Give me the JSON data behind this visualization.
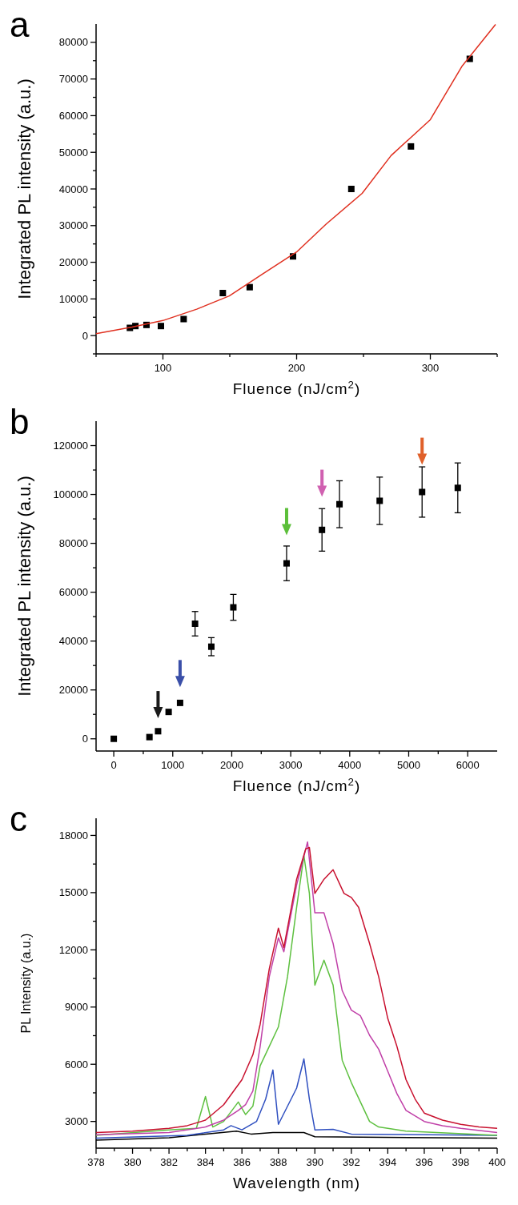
{
  "chart_data": [
    {
      "type": "scatter",
      "title": "a",
      "xlabel": "Fluence (nJ/cm$^{2}$)",
      "ylabel": "Integrated PL intensity (a.u.)",
      "xlim": [
        50,
        350
      ],
      "ylim": [
        -5000,
        85000
      ],
      "xticks": [
        {
          "value": 50,
          "label": null
        },
        100,
        {
          "value": 150,
          "label": null
        },
        200,
        {
          "value": 250,
          "label": null
        },
        300,
        {
          "value": 350,
          "label": null
        }
      ],
      "yticks": [
        {
          "value": -5000,
          "label": null
        },
        0,
        {
          "value": 5000,
          "label": null
        },
        10000,
        {
          "value": 15000,
          "label": null
        },
        20000,
        {
          "value": 25000,
          "label": null
        },
        30000,
        {
          "value": 35000,
          "label": null
        },
        40000,
        {
          "value": 45000,
          "label": null
        },
        50000,
        {
          "value": 55000,
          "label": null
        },
        60000,
        {
          "value": 65000,
          "label": null
        },
        70000,
        {
          "value": 75000,
          "label": null
        },
        80000
      ],
      "series": [
        {
          "type": "scatter",
          "marker": "square",
          "color": "#000000",
          "x": [
            75.3,
            79.4,
            87.7,
            98.5,
            115.5,
            144.8,
            164.9,
            197.3,
            240.9,
            285.5,
            329.5
          ],
          "values": [
            2100,
            2600,
            2900,
            2600,
            4500,
            11600,
            13200,
            21600,
            40000,
            51600,
            75500
          ]
        },
        {
          "type": "line",
          "marker": "none",
          "color": "#e03020",
          "x": [
            50,
            76.9,
            100,
            125.3,
            149.6,
            173.7,
            200,
            222,
            249,
            270.6,
            300,
            323.9,
            348.8
          ],
          "values": [
            500,
            2300,
            4100,
            7200,
            10800,
            16600,
            22800,
            30400,
            38800,
            49100,
            58900,
            73600,
            84900
          ]
        }
      ]
    },
    {
      "type": "scatter",
      "title": "b",
      "xlabel": "Fluence (nJ/cm$^{2}$)",
      "ylabel": "Integrated PL intensity (a.u.)",
      "xlim": [
        -300,
        6500
      ],
      "ylim": [
        -5000,
        130000
      ],
      "xticks": [
        0,
        {
          "value": 500,
          "label": null
        },
        1000,
        {
          "value": 1500,
          "label": null
        },
        2000,
        {
          "value": 2500,
          "label": null
        },
        3000,
        {
          "value": 3500,
          "label": null
        },
        4000,
        {
          "value": 4500,
          "label": null
        },
        5000,
        {
          "value": 5500,
          "label": null
        },
        6000
      ],
      "yticks": [
        0,
        {
          "value": 10000,
          "label": null
        },
        20000,
        {
          "value": 30000,
          "label": null
        },
        40000,
        {
          "value": 50000,
          "label": null
        },
        60000,
        {
          "value": 70000,
          "label": null
        },
        80000,
        {
          "value": 90000,
          "label": null
        },
        100000,
        {
          "value": 110000,
          "label": null
        },
        120000
      ],
      "series": [
        {
          "type": "scatter",
          "marker": "square",
          "color": "#000000",
          "x": [
            0,
            605,
            751,
            930,
            1124,
            1378,
            1654,
            2027,
            2930,
            3530,
            3827,
            4508,
            5227,
            5832
          ],
          "values": [
            0,
            700,
            3100,
            11000,
            14700,
            47100,
            37700,
            53800,
            71800,
            85500,
            96000,
            97400,
            101000,
            102700
          ],
          "errors": [
            null,
            null,
            null,
            null,
            null,
            5000,
            3700,
            5300,
            7100,
            8700,
            9600,
            9700,
            10300,
            10200
          ]
        },
        {
          "type": "scatter",
          "marker": "triangle",
          "colors": [
            "#1a1a1a",
            "#3a4fa8",
            "#5cbf3a",
            "#d060b0",
            "#e0602a"
          ],
          "x": [
            751,
            1124,
            2930,
            3530,
            5227
          ],
          "values": [
            10700,
            23400,
            85600,
            101300,
            114400
          ]
        }
      ]
    },
    {
      "type": "line",
      "title": "c",
      "xlabel": "Wavelength (nm)",
      "ylabel": "PL Intensity (a.u.)",
      "xlim": [
        378,
        400
      ],
      "ylim": [
        1600,
        18900
      ],
      "xticks": [
        378,
        {
          "value": 379,
          "label": null
        },
        380,
        {
          "value": 381,
          "label": null
        },
        382,
        {
          "value": 383,
          "label": null
        },
        384,
        {
          "value": 385,
          "label": null
        },
        386,
        {
          "value": 387,
          "label": null
        },
        388,
        {
          "value": 389,
          "label": null
        },
        390,
        {
          "value": 391,
          "label": null
        },
        392,
        {
          "value": 393,
          "label": null
        },
        394,
        {
          "value": 395,
          "label": null
        },
        396,
        {
          "value": 397,
          "label": null
        },
        398,
        {
          "value": 399,
          "label": null
        },
        400
      ],
      "yticks": [
        3000,
        {
          "value": 4500,
          "label": null
        },
        6000,
        {
          "value": 7500,
          "label": null
        },
        9000,
        {
          "value": 10500,
          "label": null
        },
        12000,
        {
          "value": 13500,
          "label": null
        },
        15000,
        {
          "value": 16500,
          "label": null
        },
        18000
      ],
      "series": [
        {
          "type": "line",
          "color": "#000000",
          "x": [
            378,
            382,
            385.7,
            386.5,
            387.7,
            389.4,
            390,
            400
          ],
          "values": [
            2020,
            2150,
            2490,
            2340,
            2420,
            2420,
            2200,
            2120
          ]
        },
        {
          "type": "line",
          "color": "#3050c0",
          "x": [
            378,
            383,
            385,
            385.4,
            386,
            386.8,
            387.3,
            387.7,
            388,
            389,
            389.4,
            389.7,
            390,
            391,
            392,
            400
          ],
          "values": [
            2130,
            2270,
            2560,
            2780,
            2560,
            3000,
            4170,
            5700,
            2850,
            4750,
            6280,
            4170,
            2560,
            2590,
            2340,
            2270
          ]
        },
        {
          "type": "line",
          "color": "#5ec040",
          "x": [
            378,
            382,
            383.5,
            384,
            384.4,
            385,
            385.8,
            386.2,
            386.6,
            387,
            387.5,
            388,
            388.5,
            389,
            389.4,
            389.7,
            390,
            390.5,
            391,
            391.5,
            392,
            393,
            393.5,
            395,
            400
          ],
          "values": [
            2270,
            2560,
            2640,
            4310,
            2710,
            3000,
            4020,
            3360,
            3800,
            5920,
            6940,
            7960,
            10590,
            14230,
            16930,
            14960,
            10150,
            11460,
            10150,
            6210,
            5040,
            3000,
            2710,
            2490,
            2270
          ]
        },
        {
          "type": "line",
          "color": "#c040a8",
          "x": [
            378,
            382,
            384,
            385,
            385.8,
            386.2,
            386.6,
            387,
            387.5,
            388,
            388.3,
            389,
            389.6,
            390,
            390.5,
            391,
            391.5,
            392,
            392.5,
            393,
            393.5,
            394,
            394.5,
            395,
            396,
            397,
            398,
            400
          ],
          "values": [
            2300,
            2420,
            2710,
            3070,
            3580,
            3880,
            4600,
            6940,
            10590,
            12630,
            11900,
            15400,
            17660,
            13940,
            13940,
            12340,
            9860,
            8840,
            8540,
            7520,
            6790,
            5630,
            4460,
            3580,
            3000,
            2780,
            2640,
            2420
          ]
        },
        {
          "type": "line",
          "color": "#c8102e",
          "x": [
            378,
            380,
            382,
            383,
            384,
            385,
            386,
            386.6,
            387,
            387.5,
            388,
            388.3,
            389,
            389.5,
            389.7,
            390,
            390.5,
            391,
            391.6,
            392,
            392.4,
            393,
            393.5,
            394,
            394.5,
            395,
            395.5,
            396,
            397,
            398,
            399,
            400
          ],
          "values": [
            2420,
            2490,
            2640,
            2780,
            3070,
            3880,
            5190,
            6500,
            8100,
            11000,
            13140,
            12120,
            15700,
            17300,
            17370,
            14960,
            15700,
            16200,
            14960,
            14750,
            14230,
            12340,
            10590,
            8400,
            6940,
            5190,
            4170,
            3440,
            3070,
            2850,
            2710,
            2640
          ]
        }
      ]
    }
  ]
}
